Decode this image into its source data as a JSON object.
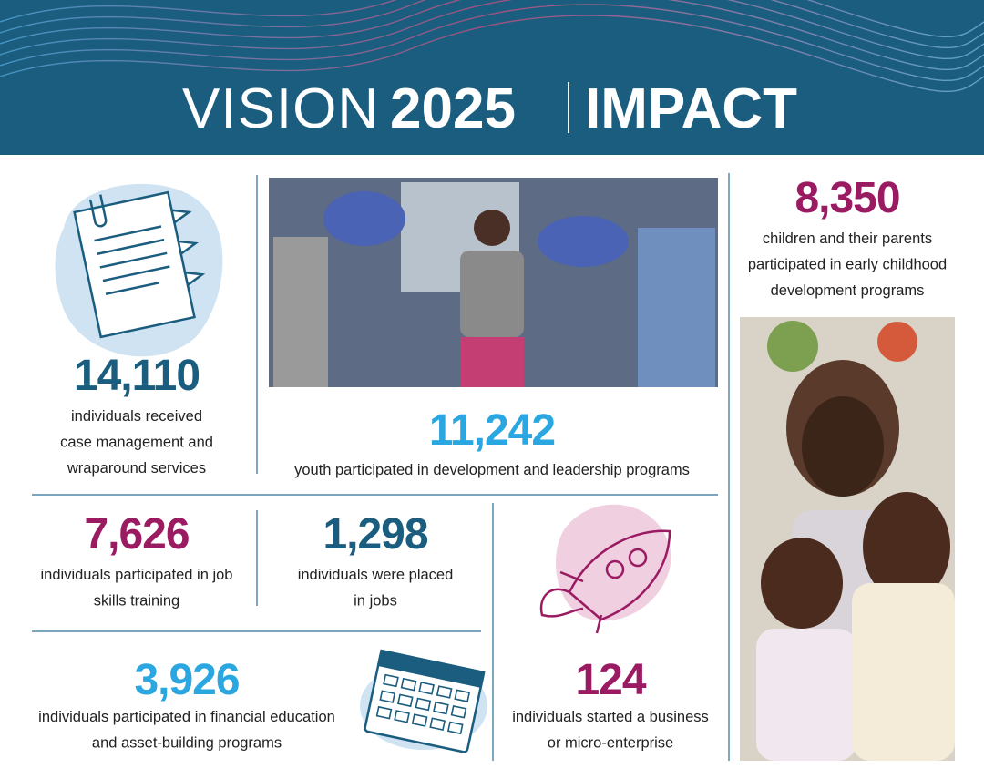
{
  "header": {
    "title_light": "VISION",
    "title_bold": "2025",
    "title_right": "IMPACT"
  },
  "stats": [
    {
      "number": "14,110",
      "lines": [
        "individuals received",
        "case management and",
        "wraparound services"
      ]
    },
    {
      "number": "11,242",
      "lines": [
        "youth participated in development and leadership programs"
      ]
    },
    {
      "number": "8,350",
      "lines": [
        "children and their parents",
        "participated in early childhood",
        "development programs"
      ]
    },
    {
      "number": "7,626",
      "lines": [
        "individuals participated in job",
        "skills training"
      ]
    },
    {
      "number": "1,298",
      "lines": [
        "individuals were placed",
        "in jobs"
      ]
    },
    {
      "number": "3,926",
      "lines": [
        "individuals participated in financial education",
        "and asset-building programs"
      ]
    },
    {
      "number": "124",
      "lines": [
        "individuals started a business",
        "or micro-enterprise"
      ]
    }
  ]
}
